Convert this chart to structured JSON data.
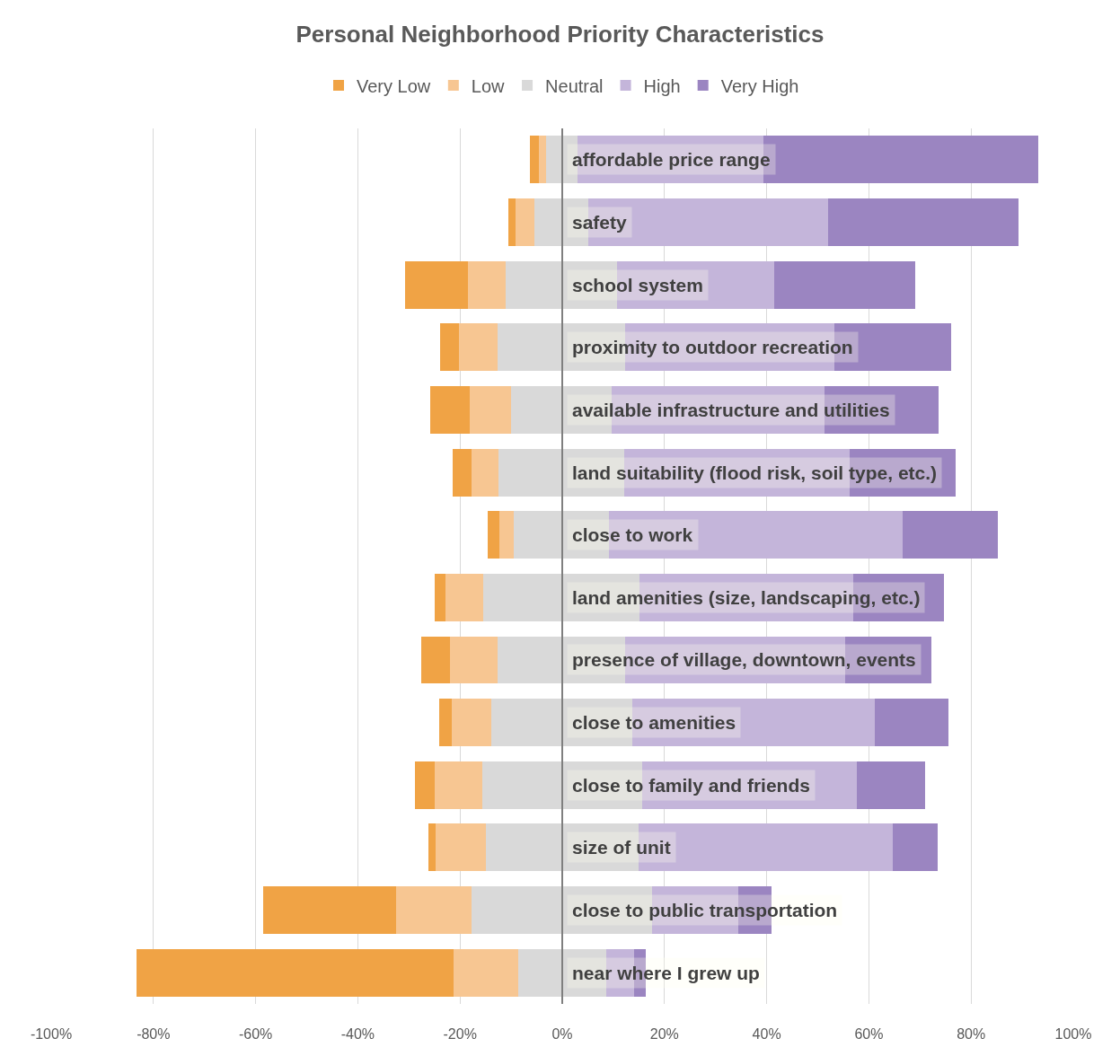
{
  "chart_data": {
    "type": "bar",
    "title": "Personal Neighborhood Priority Characteristics",
    "orientation": "horizontal",
    "categories": [
      "affordable price range",
      "safety",
      "school system",
      "proximity to outdoor recreation",
      "available infrastructure and utilities",
      "land suitability (flood risk, soil type, etc.)",
      "close to work",
      "land amenities (size, landscaping, etc.)",
      "presence of village, downtown, events",
      "close to amenities",
      "close to family and friends",
      "size of unit",
      "close to public transportation",
      "near where I grew up"
    ],
    "series": [
      {
        "name": "Very Low",
        "color": "#f0a345",
        "values": [
          1.8,
          1.4,
          12.2,
          3.7,
          7.8,
          3.7,
          2.3,
          2.1,
          5.6,
          2.4,
          3.9,
          1.5,
          26.0,
          62.1
        ],
        "base": [
          -6.4,
          -10.5,
          -30.7,
          -23.9,
          -25.9,
          -21.5,
          -14.6,
          -25.0,
          -27.6,
          -24.1,
          -28.9,
          -26.2,
          -58.5,
          -83.3
        ]
      },
      {
        "name": "Low",
        "color": "#f7c692",
        "values": [
          1.4,
          3.7,
          7.4,
          7.6,
          8.1,
          5.4,
          2.8,
          7.4,
          9.4,
          7.8,
          9.3,
          9.8,
          14.7,
          12.5
        ],
        "base": [
          -4.6,
          -9.1,
          -18.5,
          -20.2,
          -18.1,
          -17.8,
          -12.3,
          -22.9,
          -22.0,
          -21.7,
          -25.0,
          -24.7,
          -32.5,
          -21.2
        ]
      },
      {
        "name": "Neutral",
        "color": "#d9d9d9",
        "values": [
          6.2,
          10.5,
          21.8,
          24.9,
          19.7,
          24.5,
          18.7,
          30.7,
          24.9,
          27.6,
          31.4,
          29.8,
          35.4,
          17.3
        ],
        "base": [
          -3.2,
          -5.4,
          -11.1,
          -12.6,
          -10.0,
          -12.4,
          -9.5,
          -15.5,
          -12.6,
          -13.9,
          -15.7,
          -14.9,
          -17.8,
          -8.7
        ]
      },
      {
        "name": "High",
        "color": "#c4b5da",
        "values": [
          36.4,
          46.9,
          30.7,
          40.9,
          41.6,
          44.1,
          57.4,
          41.7,
          43.0,
          47.5,
          42.0,
          49.8,
          16.9,
          5.4
        ],
        "base": [
          3.0,
          5.1,
          10.7,
          12.3,
          9.7,
          12.1,
          9.2,
          15.2,
          12.3,
          13.7,
          15.7,
          14.9,
          17.6,
          8.6
        ]
      },
      {
        "name": "Very High",
        "color": "#9b85c1",
        "values": [
          53.8,
          37.3,
          27.7,
          22.9,
          22.4,
          20.8,
          18.6,
          17.8,
          16.9,
          14.3,
          13.3,
          8.7,
          6.5,
          2.4
        ],
        "base": [
          39.4,
          52.0,
          41.4,
          53.2,
          51.3,
          56.2,
          66.6,
          56.9,
          55.3,
          61.2,
          57.7,
          64.7,
          34.5,
          14.0
        ]
      }
    ],
    "xlim": [
      -100,
      100
    ],
    "xticks": [
      {
        "value": -100,
        "label": "-100%"
      },
      {
        "value": -80,
        "label": "-80%"
      },
      {
        "value": -60,
        "label": "-60%"
      },
      {
        "value": -40,
        "label": "-40%"
      },
      {
        "value": -20,
        "label": "-20%"
      },
      {
        "value": 0,
        "label": "0%"
      },
      {
        "value": 20,
        "label": "20%"
      },
      {
        "value": 40,
        "label": "40%"
      },
      {
        "value": 60,
        "label": "60%"
      },
      {
        "value": 80,
        "label": "80%"
      },
      {
        "value": 100,
        "label": "100%"
      }
    ],
    "grid": "x",
    "legend": "top"
  }
}
